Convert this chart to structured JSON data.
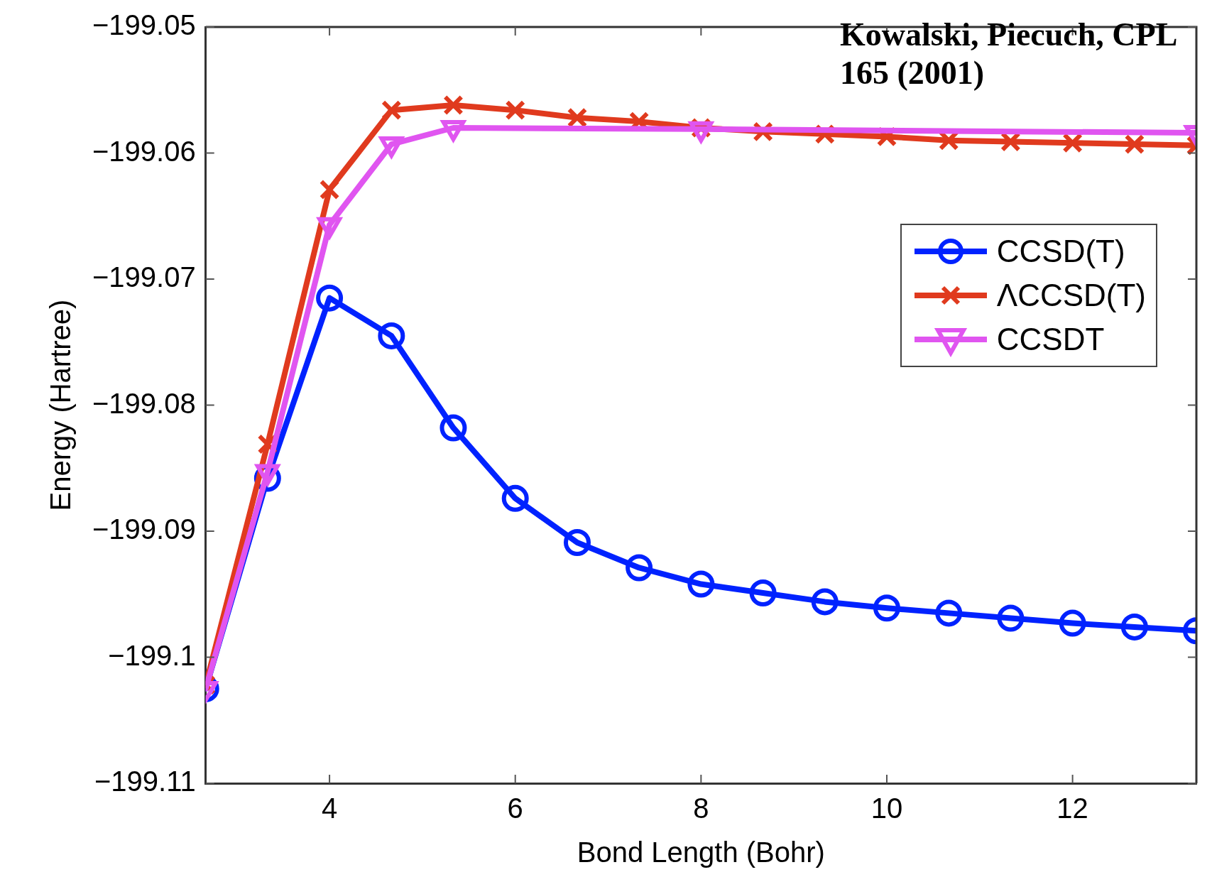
{
  "chart_data": {
    "type": "line",
    "xlabel": "Bond Length (Bohr)",
    "ylabel": "Energy (Hartree)",
    "annotations": [
      "Kowalski, Piecuch, CPL 165 (2001)"
    ],
    "xlim": [
      2.667,
      13.333
    ],
    "xticks": [
      4,
      6,
      8,
      10,
      12
    ],
    "ylim": [
      -199.11,
      -199.05
    ],
    "yticks": [
      {
        "value": -199.11,
        "label": "−199.11"
      },
      {
        "value": -199.1,
        "label": "−199.1"
      },
      {
        "value": -199.09,
        "label": "−199.09"
      },
      {
        "value": -199.08,
        "label": "−199.08"
      },
      {
        "value": -199.07,
        "label": "−199.07"
      },
      {
        "value": -199.06,
        "label": "−199.06"
      },
      {
        "value": -199.05,
        "label": "−199.05"
      }
    ],
    "x": [
      2.667,
      3.333,
      4,
      4.667,
      5.333,
      6,
      6.667,
      7.333,
      8,
      8.667,
      9.333,
      10,
      10.667,
      11.333,
      12,
      12.667,
      13.333
    ],
    "legend": "right",
    "grid": false,
    "line_style": "solid",
    "series": [
      {
        "name": "CCSD(T)",
        "color": "#0022ff",
        "marker": "circle",
        "values": [
          -199.1025,
          -199.0858,
          -199.0715,
          -199.0745,
          -199.0818,
          -199.0874,
          -199.0909,
          -199.0929,
          -199.0942,
          -199.0949,
          -199.0956,
          -199.0961,
          -199.0965,
          -199.0969,
          -199.0973,
          -199.0976,
          -199.0979
        ]
      },
      {
        "name": "ΛCCSD(T)",
        "color": "#e03a1e",
        "marker": "cross",
        "values": [
          -199.1022,
          -199.0831,
          -199.0629,
          -199.0566,
          -199.0562,
          -199.0566,
          -199.0572,
          -199.0575,
          -199.058,
          -199.0583,
          -199.0585,
          -199.0587,
          -199.059,
          -199.0591,
          -199.0592,
          -199.0593,
          -199.0594
        ]
      },
      {
        "name": "CCSDT",
        "color": "#e055f0",
        "marker": "triangle",
        "x": [
          2.667,
          3.333,
          4,
          4.667,
          5.333,
          8,
          13.333
        ],
        "values": [
          -199.1025,
          -199.0853,
          -199.0657,
          -199.0593,
          -199.058,
          -199.0581,
          -199.0584
        ]
      }
    ]
  }
}
